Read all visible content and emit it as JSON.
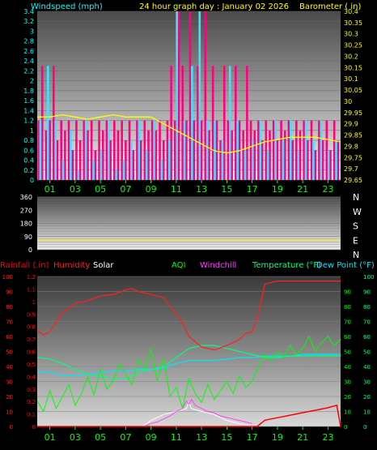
{
  "colors": {
    "wind_axis": "#00ffff",
    "gust": "#ff0080",
    "wind": "#40e0ff",
    "barometer": "#ffff00",
    "rain": "#ff0000",
    "humidity": "#ff2020",
    "solar": "#ffffff",
    "aqi": "#00ff00",
    "windchill": "#ff40ff",
    "temperature": "#00ff80",
    "dewpoint": "#00e5ff",
    "tick": "#00ff00",
    "direction_line": "#ffff00"
  },
  "chart_data": [
    {
      "type": "bar+line",
      "title": "24 hour graph day : January 02 2026",
      "left_axis_label": "Windspeed (mph)",
      "right_axis_label": "Barometer ( in)",
      "ylim_left": [
        0,
        3.4
      ],
      "ylim_right": [
        29.65,
        30.4
      ],
      "left_ticks": [
        "0",
        "0.2",
        "0.4",
        "0.6",
        "0.8",
        "1",
        "1.2",
        "1.4",
        "1.6",
        "1.8",
        "2",
        "2.2",
        "2.4",
        "2.6",
        "2.8",
        "3",
        "3.2",
        "3.4"
      ],
      "right_ticks": [
        "29.65",
        "29.7",
        "29.75",
        "29.8",
        "29.85",
        "29.9",
        "29.95",
        "30",
        "30.05",
        "30.1",
        "30.15",
        "30.2",
        "30.25",
        "30.3",
        "30.35",
        "30.4"
      ],
      "x_ticks": [
        "01",
        "03",
        "05",
        "07",
        "09",
        "11",
        "13",
        "15",
        "17",
        "19",
        "21",
        "23"
      ],
      "xlim_hours": [
        0,
        24
      ],
      "gust_series": {
        "x": [
          0.1,
          0.4,
          0.7,
          1.0,
          1.3,
          1.6,
          1.9,
          2.2,
          2.5,
          2.8,
          3.1,
          3.4,
          3.7,
          4.0,
          4.3,
          4.6,
          4.9,
          5.2,
          5.5,
          5.8,
          6.1,
          6.4,
          6.7,
          7.0,
          7.3,
          7.6,
          7.9,
          8.2,
          8.5,
          8.8,
          9.1,
          9.4,
          9.7,
          10.0,
          10.3,
          10.6,
          10.9,
          11.2,
          11.5,
          11.8,
          12.1,
          12.4,
          12.7,
          13.0,
          13.3,
          13.6,
          13.9,
          14.2,
          14.5,
          14.8,
          15.1,
          15.4,
          15.7,
          16.0,
          16.3,
          16.6,
          16.9,
          17.2,
          17.5,
          17.8,
          18.1,
          18.4,
          18.7,
          19.0,
          19.3,
          19.6,
          19.9,
          20.2,
          20.5,
          20.8,
          21.1,
          21.4,
          21.7,
          22.0,
          22.3,
          22.6,
          22.9,
          23.2,
          23.5,
          23.8
        ],
        "values": [
          1.2,
          2.3,
          1.0,
          1.2,
          2.3,
          0.8,
          1.2,
          1.0,
          1.2,
          0.6,
          1.2,
          0.8,
          1.2,
          1.0,
          1.2,
          0.6,
          1.2,
          1.0,
          1.2,
          0.8,
          1.2,
          1.0,
          1.2,
          0.8,
          1.2,
          0.6,
          1.2,
          0.8,
          1.2,
          1.0,
          1.2,
          1.0,
          1.2,
          0.8,
          1.2,
          2.3,
          1.2,
          3.4,
          2.3,
          1.2,
          3.4,
          1.2,
          2.3,
          1.2,
          3.4,
          1.0,
          2.3,
          1.2,
          0.8,
          2.3,
          1.2,
          1.0,
          2.3,
          1.2,
          1.0,
          2.3,
          1.2,
          1.0,
          1.2,
          0.8,
          1.2,
          1.0,
          1.2,
          0.8,
          1.2,
          1.0,
          1.2,
          0.8,
          1.2,
          1.0,
          1.2,
          0.8,
          1.2,
          0.6,
          1.2,
          0.8,
          1.2,
          0.6,
          1.2,
          0.8
        ]
      },
      "wind_series": {
        "x": [
          0.25,
          0.85,
          1.45,
          2.05,
          2.65,
          3.25,
          3.85,
          4.45,
          5.05,
          5.65,
          6.25,
          6.85,
          7.45,
          8.05,
          8.65,
          9.25,
          9.85,
          10.45,
          11.05,
          11.65,
          12.25,
          12.85,
          13.45,
          14.05,
          14.65,
          15.25,
          15.85,
          16.45,
          17.05,
          17.65,
          18.25,
          18.85,
          19.45,
          20.05,
          20.65,
          21.25,
          21.85,
          22.45,
          23.05,
          23.65
        ],
        "values": [
          1.2,
          2.3,
          1.2,
          0.4,
          1.0,
          0.2,
          1.2,
          0.4,
          0.6,
          1.2,
          0.2,
          0.4,
          0.8,
          1.2,
          0.6,
          1.2,
          0.4,
          0.8,
          3.4,
          1.2,
          2.3,
          3.4,
          1.2,
          1.2,
          0.8,
          2.3,
          1.2,
          0.6,
          0.8,
          1.2,
          0.6,
          1.2,
          0.8,
          1.2,
          0.6,
          1.2,
          0.8,
          1.2,
          0.6,
          0.8
        ]
      },
      "barometer_series": {
        "x": [
          0,
          1,
          2,
          3,
          4,
          5,
          6,
          7,
          8,
          9,
          10,
          11,
          12,
          13,
          14,
          15,
          16,
          17,
          18,
          19,
          20,
          21,
          22,
          23,
          24
        ],
        "values": [
          29.93,
          29.93,
          29.94,
          29.93,
          29.92,
          29.93,
          29.94,
          29.93,
          29.93,
          29.93,
          29.9,
          29.87,
          29.84,
          29.81,
          29.78,
          29.77,
          29.78,
          29.8,
          29.82,
          29.83,
          29.84,
          29.84,
          29.84,
          29.83,
          29.82
        ]
      }
    },
    {
      "type": "line",
      "ylim": [
        0,
        360
      ],
      "left_ticks": [
        "360",
        "270",
        "180",
        "90",
        "0"
      ],
      "right_labels": [
        "N",
        "W",
        "S",
        "E",
        "N"
      ],
      "x_ticks": [],
      "xlim_hours": [
        0,
        24
      ],
      "direction_series": {
        "x": [
          0,
          24
        ],
        "values": [
          67,
          67
        ]
      }
    },
    {
      "type": "line",
      "legend": [
        "Rainfall (.in)",
        "Humidity",
        "Solar",
        "AQI",
        "Windchill",
        "Temperature (°F)",
        "Dew Point (°F)"
      ],
      "left_ticks_rain": [
        "0",
        "0.1",
        "0.2",
        "0.3",
        "0.4",
        "0.5",
        "0.6",
        "0.7",
        "0.8",
        "0.9",
        "1",
        "1.1",
        "1.2"
      ],
      "left_ticks_humidity": [
        "0",
        "10",
        "20",
        "30",
        "40",
        "50",
        "60",
        "70",
        "80",
        "90",
        "100"
      ],
      "right_ticks_aqi": [
        "0",
        "10",
        "20",
        "30",
        "40",
        "50",
        "60",
        "70",
        "80",
        "90"
      ],
      "right_ticks_temp": [
        "0",
        "10",
        "20",
        "30",
        "40",
        "50",
        "60",
        "70",
        "80",
        "90",
        "100"
      ],
      "x_ticks": [
        "01",
        "03",
        "05",
        "07",
        "09",
        "11",
        "13",
        "15",
        "17",
        "19",
        "21",
        "23"
      ],
      "xlim_hours": [
        0,
        24
      ],
      "ylim": [
        0,
        100
      ],
      "humidity_series": {
        "x": [
          0,
          0.5,
          1,
          1.5,
          2,
          3,
          4,
          5,
          6,
          7,
          7.5,
          8,
          9,
          10,
          10.5,
          11,
          11.5,
          12,
          13,
          14,
          15,
          16,
          16.5,
          17,
          17.5,
          18,
          19,
          20,
          21,
          22,
          23,
          24
        ],
        "values": [
          64,
          61,
          63,
          70,
          76,
          82,
          84,
          87,
          88,
          91,
          92,
          90,
          88,
          86,
          80,
          75,
          69,
          60,
          53,
          51,
          54,
          58,
          62,
          63,
          75,
          95,
          97,
          97,
          97,
          97,
          97,
          97
        ]
      },
      "aqi_series": {
        "x": [
          0,
          0.5,
          1,
          1.5,
          2,
          2.5,
          3,
          3.5,
          4,
          4.5,
          5,
          5.5,
          6,
          6.5,
          7,
          7.5,
          8,
          8.5,
          9,
          9.5,
          10,
          10.5,
          11,
          11.5,
          12,
          12.5,
          13,
          13.5,
          14,
          14.5,
          15,
          15.5,
          16,
          16.5,
          17,
          17.5,
          18,
          18.5,
          19,
          19.5,
          20,
          20.5,
          21,
          21.5,
          22,
          22.5,
          23,
          23.5,
          24
        ],
        "values": [
          17,
          10,
          24,
          12,
          20,
          28,
          14,
          22,
          33,
          21,
          38,
          25,
          30,
          42,
          35,
          28,
          44,
          38,
          52,
          30,
          45,
          20,
          26,
          12,
          32,
          22,
          16,
          28,
          18,
          24,
          30,
          22,
          34,
          26,
          30,
          40,
          48,
          44,
          50,
          46,
          54,
          48,
          52,
          60,
          50,
          56,
          60,
          54,
          58
        ]
      },
      "temperature_series": {
        "x": [
          0,
          1,
          2,
          3,
          4,
          5,
          6,
          7,
          8,
          9,
          10,
          11,
          12,
          13,
          14,
          15,
          16,
          17,
          18,
          19,
          20,
          21,
          22,
          23,
          24
        ],
        "values": [
          46,
          45,
          42,
          38,
          35,
          33,
          32,
          32,
          36,
          38,
          40,
          46,
          52,
          54,
          54,
          52,
          50,
          48,
          46,
          46,
          47,
          47,
          47,
          47,
          47
        ]
      },
      "dewpoint_series": {
        "x": [
          0,
          1,
          2,
          3,
          4,
          5,
          6,
          7,
          8,
          9,
          10,
          11,
          12,
          13,
          14,
          15,
          16,
          17,
          18,
          19,
          20,
          21,
          22,
          23,
          24
        ],
        "values": [
          36,
          36,
          34,
          34,
          35,
          36,
          37,
          37,
          38,
          38,
          39,
          42,
          44,
          44,
          44,
          45,
          46,
          46,
          47,
          47,
          47,
          48,
          48,
          48,
          48
        ]
      },
      "windchill_series": {
        "x": [
          8.5,
          9,
          9.5,
          10,
          10.5,
          11,
          11.5,
          11.8,
          12,
          12.2,
          12.5,
          13,
          13.5,
          14,
          14.5,
          15,
          15.5,
          16,
          16.5,
          17
        ],
        "values": [
          0,
          2,
          3,
          5,
          7,
          10,
          12,
          17,
          15,
          18,
          14,
          12,
          10,
          9,
          7,
          6,
          5,
          4,
          3,
          2
        ]
      },
      "solar_series": {
        "x": [
          8.3,
          9,
          10,
          11,
          11.8,
          12,
          12.2,
          13,
          14,
          15,
          16,
          17
        ],
        "values": [
          0,
          4,
          8,
          10,
          12,
          16,
          12,
          10,
          8,
          4,
          2,
          0
        ]
      },
      "rain_series": {
        "x": [
          0,
          17.4,
          18,
          19,
          20,
          21,
          22,
          23,
          23.7,
          24
        ],
        "values": [
          0,
          0,
          0.05,
          0.07,
          0.09,
          0.11,
          0.13,
          0.15,
          0.17,
          0.0
        ]
      }
    }
  ]
}
